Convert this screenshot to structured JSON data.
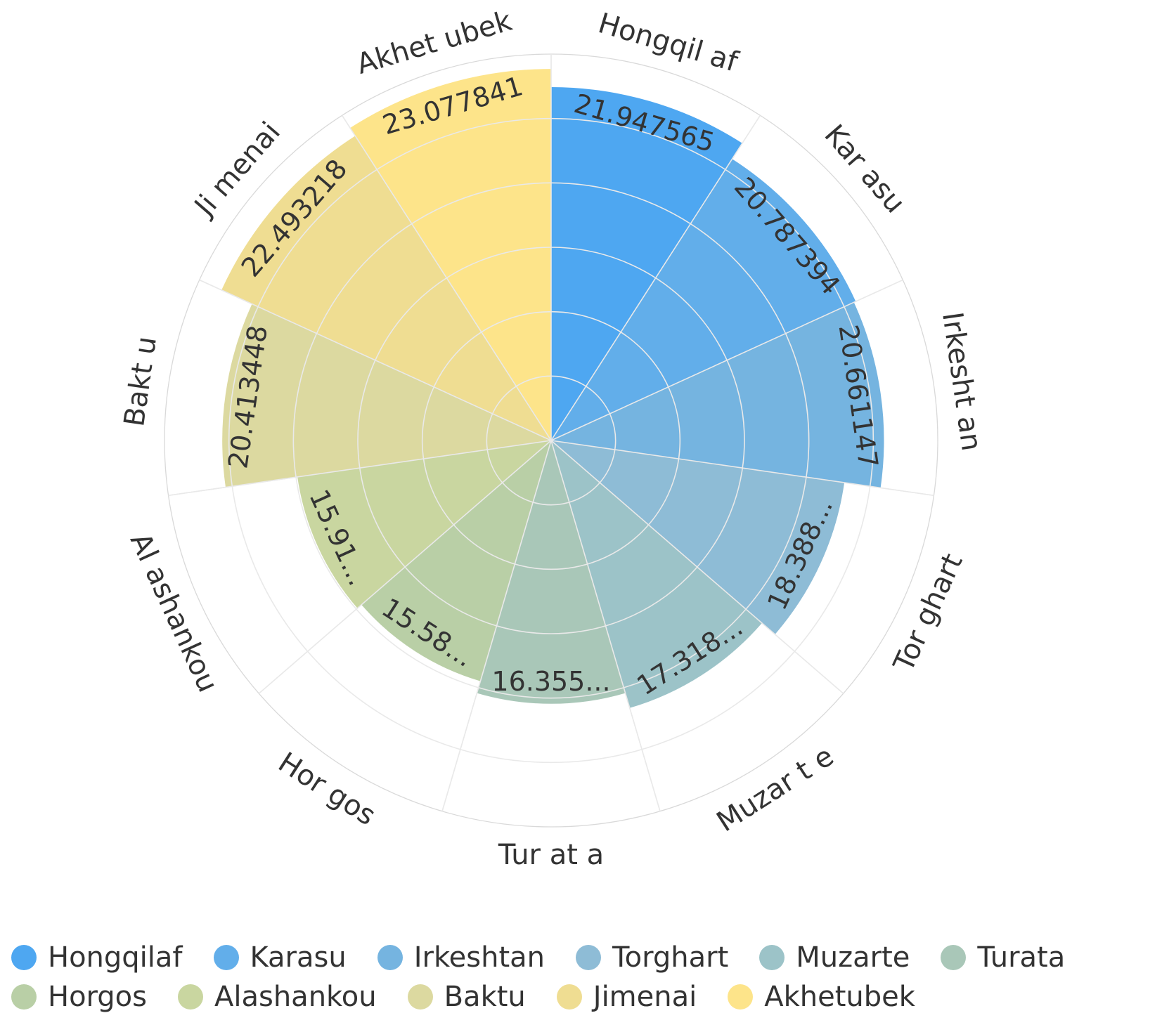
{
  "chart_data": {
    "type": "polar-bar",
    "title": "",
    "rlim": [
      0,
      24
    ],
    "grid": true,
    "legend_position": "bottom",
    "categories": [
      "Hongqilaf",
      "Karasu",
      "Irkeshtan",
      "Torghart",
      "Muzarte",
      "Turata",
      "Horgos",
      "Alashankou",
      "Baktu",
      "Jimenai",
      "Akhetubek"
    ],
    "axis_labels": [
      "Hongqil af",
      "Kar asu",
      "Irkesht an",
      "Tor ghart",
      "Muzar t e",
      "Tur at a",
      "Hor gos",
      "Al ashankou",
      "Bakt u",
      "Ji menai",
      "Akhet ubek"
    ],
    "values": [
      21.947565,
      20.787394,
      20.661147,
      18.388,
      17.318,
      16.355,
      15.58,
      15.91,
      20.413448,
      22.493218,
      23.077841
    ],
    "value_labels": [
      "21.947565",
      "20.787394",
      "20.661147",
      "18.388...",
      "17.318...",
      "16.355...",
      "15.58...",
      "15.91...",
      "20.413448",
      "22.493218",
      "23.077841"
    ],
    "colors": [
      "#4ea7f1",
      "#62aeea",
      "#75b4e0",
      "#8ebcd6",
      "#9cc3c8",
      "#a9c7b8",
      "#b9cfa6",
      "#c9d6a0",
      "#dcd9a0",
      "#efdd92",
      "#fde48a"
    ]
  },
  "legend": {
    "items": [
      {
        "label": "Hongqilaf",
        "color": "#4ea7f1"
      },
      {
        "label": "Karasu",
        "color": "#62aeea"
      },
      {
        "label": "Irkeshtan",
        "color": "#75b4e0"
      },
      {
        "label": "Torghart",
        "color": "#8ebcd6"
      },
      {
        "label": "Muzarte",
        "color": "#9cc3c8"
      },
      {
        "label": "Turata",
        "color": "#a9c7b8"
      },
      {
        "label": "Horgos",
        "color": "#b9cfa6"
      },
      {
        "label": "Alashankou",
        "color": "#c9d6a0"
      },
      {
        "label": "Baktu",
        "color": "#dcd9a0"
      },
      {
        "label": "Jimenai",
        "color": "#efdd92"
      },
      {
        "label": "Akhetubek",
        "color": "#fde48a"
      }
    ]
  }
}
